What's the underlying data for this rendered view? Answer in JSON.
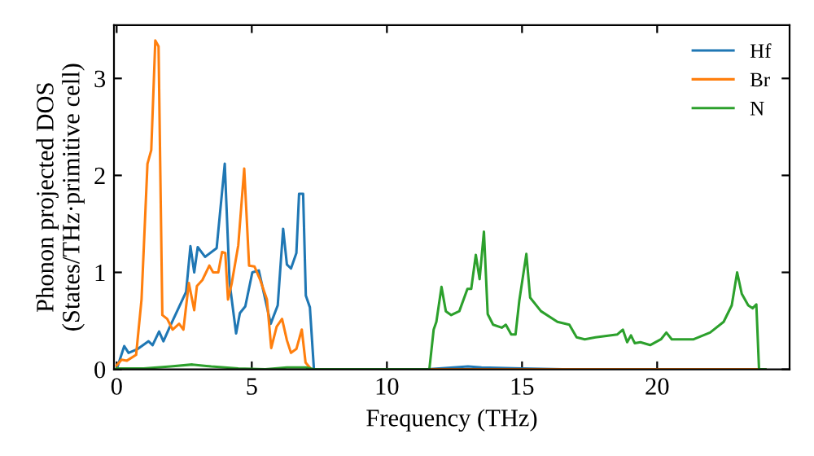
{
  "chart_data": {
    "type": "line",
    "xlabel": "Frequency (THz)",
    "ylabel": "Phonon projected DOS\n(States/THz·primitive cell)",
    "xlim": [
      -0.1,
      24.9
    ],
    "ylim": [
      0,
      3.55
    ],
    "xticks": [
      0,
      5,
      10,
      15,
      20
    ],
    "yticks": [
      0,
      1,
      2,
      3
    ],
    "grid": false,
    "legend": "top right",
    "series": [
      {
        "name": "Hf",
        "color": "#1f77b4",
        "x": [
          0,
          0.28,
          0.44,
          0.78,
          1.18,
          1.33,
          1.57,
          1.73,
          1.97,
          2.57,
          2.73,
          2.87,
          3.0,
          3.27,
          3.7,
          4.0,
          4.18,
          4.42,
          4.56,
          4.76,
          5.02,
          5.26,
          5.7,
          5.96,
          6.16,
          6.3,
          6.45,
          6.65,
          6.75,
          6.9,
          7.0,
          7.15,
          7.3,
          11.5,
          13.0,
          13.5,
          15.0,
          16.5,
          24.0
        ],
        "values": [
          0,
          0.24,
          0.17,
          0.21,
          0.29,
          0.25,
          0.39,
          0.29,
          0.44,
          0.8,
          1.27,
          1.0,
          1.26,
          1.16,
          1.25,
          2.12,
          0.89,
          0.37,
          0.58,
          0.65,
          1.0,
          1.02,
          0.47,
          0.66,
          1.45,
          1.08,
          1.04,
          1.2,
          1.81,
          1.81,
          0.76,
          0.64,
          0,
          0,
          0.03,
          0.02,
          0.01,
          0,
          0
        ]
      },
      {
        "name": "Br",
        "color": "#ff7f0e",
        "x": [
          0,
          0.18,
          0.38,
          0.72,
          0.92,
          1.14,
          1.28,
          1.43,
          1.55,
          1.69,
          1.87,
          2.07,
          2.31,
          2.47,
          2.67,
          2.87,
          2.97,
          3.17,
          3.43,
          3.57,
          3.76,
          3.9,
          4.02,
          4.12,
          4.26,
          4.5,
          4.72,
          4.9,
          5.1,
          5.3,
          5.56,
          5.72,
          5.92,
          6.12,
          6.3,
          6.45,
          6.65,
          6.85,
          6.99,
          7.2,
          24.0
        ],
        "values": [
          0.04,
          0.1,
          0.09,
          0.15,
          0.72,
          2.12,
          2.26,
          3.39,
          3.33,
          0.56,
          0.52,
          0.41,
          0.47,
          0.41,
          0.89,
          0.61,
          0.86,
          0.92,
          1.07,
          1.0,
          1.0,
          1.21,
          1.2,
          0.72,
          0.89,
          1.28,
          2.07,
          1.07,
          1.06,
          0.93,
          0.72,
          0.22,
          0.44,
          0.52,
          0.3,
          0.17,
          0.21,
          0.41,
          0.07,
          0,
          0
        ]
      },
      {
        "name": "N",
        "color": "#2ca02c",
        "x": [
          0,
          1,
          2,
          2.8,
          3.5,
          4.5,
          5.5,
          6.3,
          7,
          7.3,
          11.5,
          11.57,
          11.73,
          11.83,
          12.02,
          12.18,
          12.38,
          12.68,
          12.98,
          13.12,
          13.29,
          13.43,
          13.59,
          13.73,
          13.93,
          14.25,
          14.4,
          14.6,
          14.76,
          14.9,
          15.16,
          15.3,
          15.7,
          16.31,
          16.75,
          17.02,
          17.32,
          17.72,
          18.53,
          18.73,
          18.89,
          19.03,
          19.17,
          19.38,
          19.74,
          20.14,
          20.34,
          20.54,
          21.35,
          21.96,
          22.46,
          22.76,
          22.96,
          23.13,
          23.37,
          23.53,
          23.67,
          23.77,
          24.0
        ],
        "values": [
          0.01,
          0.01,
          0.03,
          0.05,
          0.03,
          0.01,
          0,
          0.02,
          0.02,
          0,
          0,
          0,
          0.41,
          0.49,
          0.85,
          0.6,
          0.56,
          0.6,
          0.83,
          0.83,
          1.18,
          0.93,
          1.42,
          0.57,
          0.46,
          0.43,
          0.46,
          0.36,
          0.36,
          0.71,
          1.19,
          0.74,
          0.6,
          0.49,
          0.46,
          0.33,
          0.31,
          0.33,
          0.36,
          0.41,
          0.28,
          0.35,
          0.27,
          0.28,
          0.25,
          0.31,
          0.38,
          0.31,
          0.31,
          0.38,
          0.49,
          0.66,
          1.0,
          0.78,
          0.66,
          0.63,
          0.67,
          0,
          0
        ]
      }
    ]
  }
}
